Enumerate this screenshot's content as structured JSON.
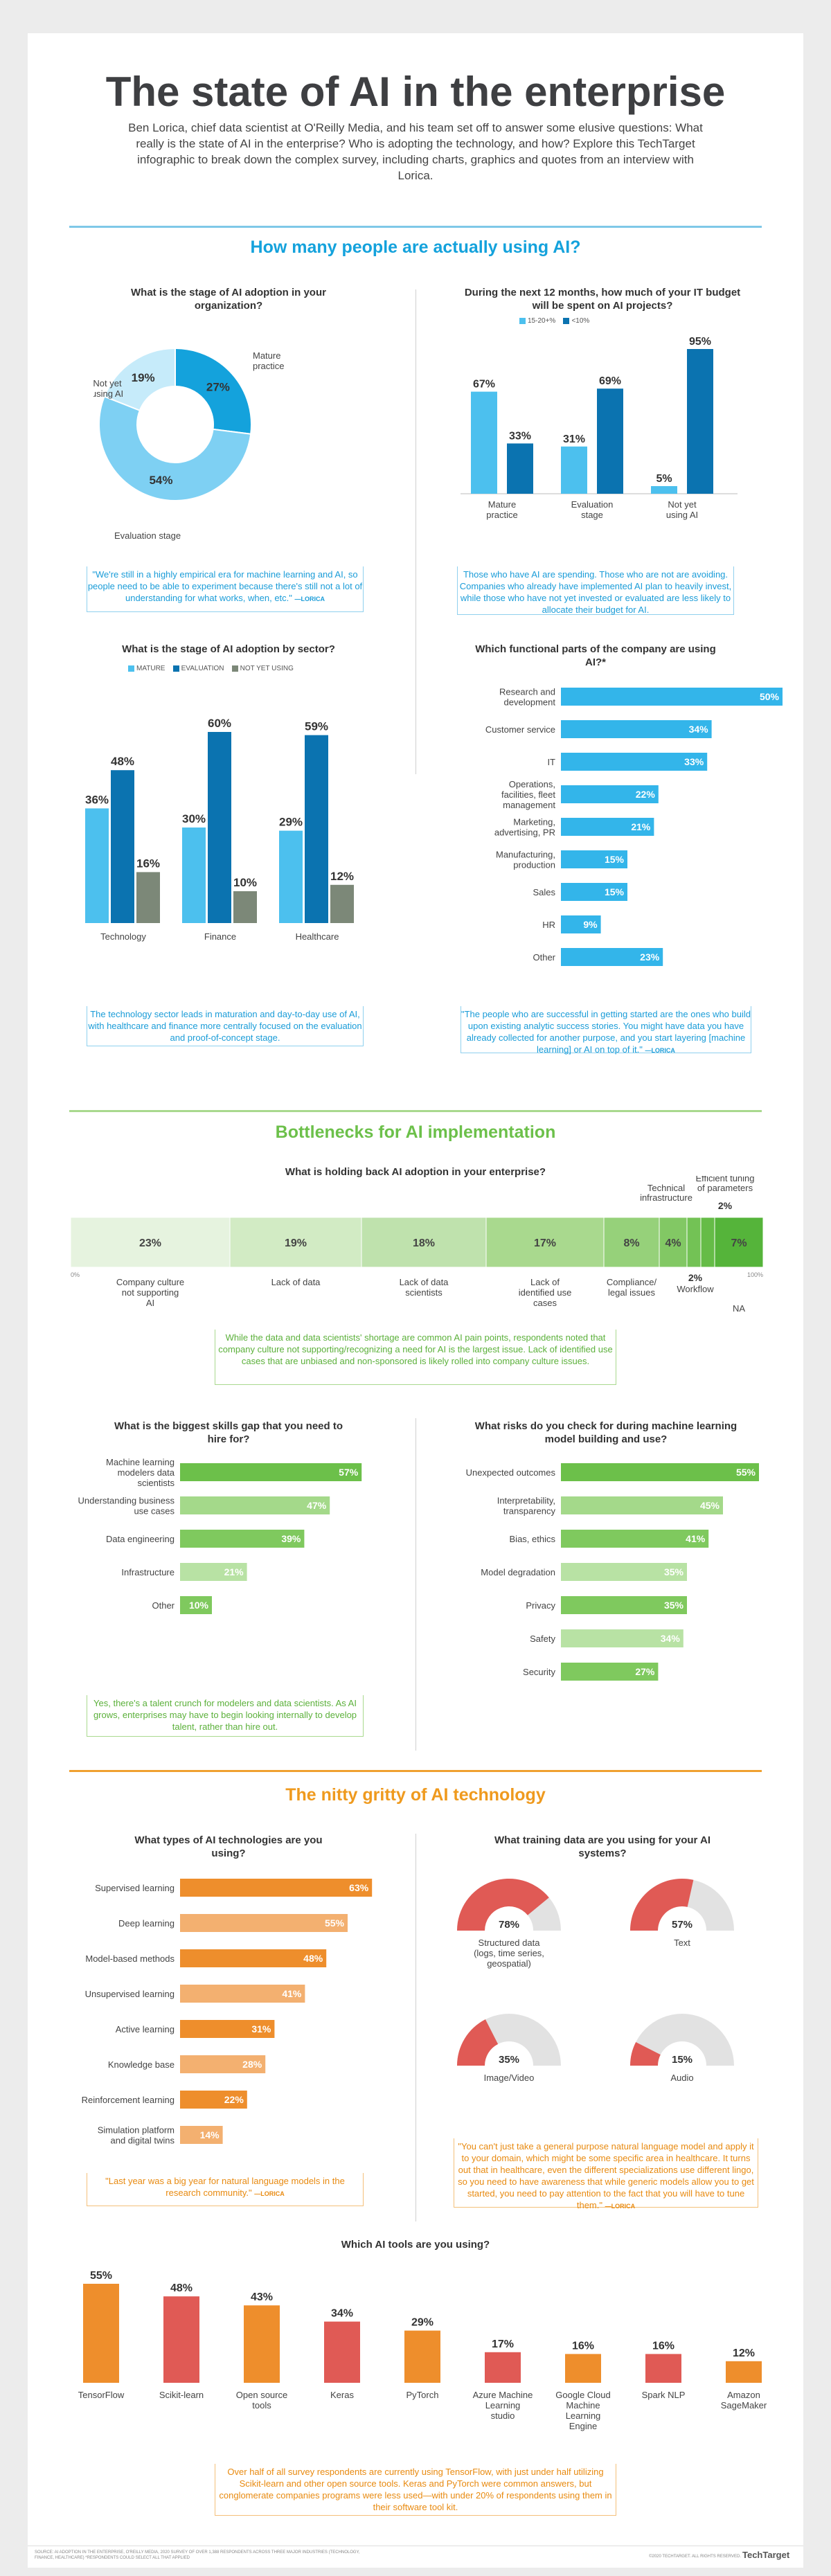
{
  "title": "The state of AI in the enterprise",
  "intro": "Ben Lorica, chief data scientist at O'Reilly Media, and his team set off to answer some elusive questions: What really is the state of AI in the enterprise? Who is adopting the technology, and how? Explore this TechTarget infographic to break down the complex survey, including charts, graphics and quotes from an interview with Lorica.",
  "colors": {
    "blue_rule": "#7ec8e8",
    "green": "#6cc04a",
    "orange": "#f0a030",
    "blue_light": "#4cc0ee",
    "blue_dark": "#0b73b0",
    "grey": "#7c8878"
  },
  "sections": {
    "usage": "How many people are actually using AI?",
    "bottlenecks": "Bottlenecks for AI implementation",
    "gritty": "The nitty gritty of AI technology"
  },
  "questions": {
    "adoption_stage": "What is the stage of AI adoption in your organization?",
    "budget": "During the next 12 months, how much of your IT budget will be spent on AI projects?",
    "by_sector": "What is the stage of AI adoption by sector?",
    "functional": "Which functional parts of the company are using AI?*",
    "holding_back": "What is holding back AI adoption in your enterprise?",
    "skills": "What is the biggest skills gap that you need to hire for?",
    "risks": "What risks do you check for during machine learning model building and use?",
    "tech_types": "What types of AI technologies are you using?",
    "training_data": "What training data are you using for your AI systems?",
    "tools": "Which AI tools are you using?"
  },
  "quotes": {
    "q1": "\"We're still in a highly empirical era for machine learning and AI, so people need to be able to experiment because there's still not a lot of understanding for what works, when, etc.\"",
    "q1_src": "—LORICA",
    "q2": "Those who have AI are spending. Those who are not are avoiding. Companies who already have implemented AI plan to heavily invest, while those who have not yet invested or evaluated are less likely to allocate their budget for AI.",
    "q3": "The technology sector leads in maturation and day-to-day use of AI, with healthcare and finance more centrally focused on the evaluation and proof-of-concept stage.",
    "q4": "\"The people who are successful in getting started are the ones who build upon existing analytic success stories. You might have data you have already collected for another purpose, and you start layering [machine learning] or AI on top of it.\"",
    "q4_src": "—LORICA",
    "q5": "While the data and data scientists' shortage are common AI pain points, respondents noted that company culture not supporting/recognizing a need for AI is the largest issue. Lack of identified use cases that are unbiased and non-sponsored is likely rolled into company culture issues.",
    "q6": "Yes, there's a talent crunch for modelers and data scientists. As AI grows, enterprises may have to begin looking internally to develop talent, rather than hire out.",
    "q7": "\"Last year was a big year for natural language models in the research community.\"",
    "q7_src": "—LORICA",
    "q8": "\"You can't just take a general purpose natural language model and apply it to your domain, which might be some specific area in healthcare. It turns out that in healthcare, even the different specializations use different lingo, so you need to have awareness that while generic models allow you to get started, you need to pay attention to the fact that you will have to tune them.\"",
    "q8_src": "—LORICA",
    "q9": "Over half of all survey respondents are currently using TensorFlow, with just under half utilizing Scikit-learn and other open source tools. Keras and PyTorch were common answers, but conglomerate companies programs were less used—with under 20% of respondents using them in their software tool kit."
  },
  "chart_data": [
    {
      "type": "pie",
      "id": "adoption_stage",
      "slices": [
        {
          "name": "Mature practice",
          "value": 27,
          "label": "27%"
        },
        {
          "name": "Evaluation stage",
          "value": 54,
          "label": "54%"
        },
        {
          "name": "Not yet using AI",
          "value": 19,
          "label": "19%"
        }
      ]
    },
    {
      "type": "bar",
      "id": "budget",
      "legend": [
        "15-20+%",
        "<10%"
      ],
      "categories": [
        "Mature practice",
        "Evaluation stage",
        "Not yet using AI"
      ],
      "series": [
        {
          "name": "15-20+%",
          "values": [
            67,
            31,
            5
          ],
          "labels": [
            "67%",
            "31%",
            "5%"
          ]
        },
        {
          "name": "<10%",
          "values": [
            33,
            69,
            95
          ],
          "labels": [
            "33%",
            "69%",
            "95%"
          ]
        }
      ]
    },
    {
      "type": "bar",
      "id": "by_sector",
      "legend": [
        "MATURE",
        "EVALUATION",
        "NOT YET USING"
      ],
      "categories": [
        "Technology",
        "Finance",
        "Healthcare"
      ],
      "series": [
        {
          "name": "MATURE",
          "values": [
            36,
            30,
            29
          ],
          "labels": [
            "36%",
            "30%",
            "29%"
          ]
        },
        {
          "name": "EVALUATION",
          "values": [
            48,
            60,
            59
          ],
          "labels": [
            "48%",
            "60%",
            "59%"
          ]
        },
        {
          "name": "NOT YET USING",
          "values": [
            16,
            10,
            12
          ],
          "labels": [
            "16%",
            "10%",
            "12%"
          ]
        }
      ]
    },
    {
      "type": "bar",
      "id": "functional",
      "orientation": "horizontal",
      "categories": [
        "Research and development",
        "Customer service",
        "IT",
        "Operations, facilities, fleet management",
        "Marketing, advertising, PR",
        "Manufacturing, production",
        "Sales",
        "HR",
        "Other"
      ],
      "values": [
        50,
        34,
        33,
        22,
        21,
        15,
        15,
        9,
        23
      ],
      "labels": [
        "50%",
        "34%",
        "33%",
        "22%",
        "21%",
        "15%",
        "15%",
        "9%",
        "23%"
      ]
    },
    {
      "type": "bar",
      "id": "holding_back",
      "orientation": "stacked-horizontal",
      "axis_start": "0%",
      "axis_end": "100%",
      "categories": [
        "Company culture not supporting AI",
        "Lack of data",
        "Lack of data scientists",
        "Lack of identified use cases",
        "Compliance/ legal issues",
        "Technical infrastructure",
        "Workflow",
        "Efficient tuning of parameters",
        "NA"
      ],
      "values": [
        23,
        19,
        18,
        17,
        8,
        4,
        2,
        2,
        7
      ],
      "labels": [
        "23%",
        "19%",
        "18%",
        "17%",
        "8%",
        "4%",
        "2%",
        "2%",
        "7%"
      ]
    },
    {
      "type": "bar",
      "id": "skills",
      "orientation": "horizontal",
      "categories": [
        "Machine learning modelers data scientists",
        "Understanding business use cases",
        "Data engineering",
        "Infrastructure",
        "Other"
      ],
      "values": [
        57,
        47,
        39,
        21,
        10
      ],
      "labels": [
        "57%",
        "47%",
        "39%",
        "21%",
        "10%"
      ]
    },
    {
      "type": "bar",
      "id": "risks",
      "orientation": "horizontal",
      "categories": [
        "Unexpected outcomes",
        "Interpretability, transparency",
        "Bias, ethics",
        "Model degradation",
        "Privacy",
        "Safety",
        "Security"
      ],
      "values": [
        55,
        45,
        41,
        35,
        35,
        34,
        27
      ],
      "labels": [
        "55%",
        "45%",
        "41%",
        "35%",
        "35%",
        "34%",
        "27%"
      ]
    },
    {
      "type": "bar",
      "id": "tech_types",
      "orientation": "horizontal",
      "categories": [
        "Supervised learning",
        "Deep learning",
        "Model-based methods",
        "Unsupervised learning",
        "Active learning",
        "Knowledge base",
        "Reinforcement learning",
        "Simulation platform and digital twins"
      ],
      "values": [
        63,
        55,
        48,
        41,
        31,
        28,
        22,
        14
      ],
      "labels": [
        "63%",
        "55%",
        "48%",
        "41%",
        "31%",
        "28%",
        "22%",
        "14%"
      ]
    },
    {
      "type": "pie",
      "id": "training_data",
      "style": "gauge",
      "items": [
        {
          "name": "Structured data (logs, time series, geospatial)",
          "value": 78,
          "label": "78%"
        },
        {
          "name": "Text",
          "value": 57,
          "label": "57%"
        },
        {
          "name": "Image/Video",
          "value": 35,
          "label": "35%"
        },
        {
          "name": "Audio",
          "value": 15,
          "label": "15%"
        }
      ]
    },
    {
      "type": "bar",
      "id": "tools",
      "categories": [
        "TensorFlow",
        "Scikit-learn",
        "Open source tools",
        "Keras",
        "PyTorch",
        "Azure Machine Learning studio",
        "Google Cloud Machine Learning Engine",
        "Spark NLP",
        "Amazon SageMaker"
      ],
      "values": [
        55,
        48,
        43,
        34,
        29,
        17,
        16,
        16,
        12
      ],
      "labels": [
        "55%",
        "48%",
        "43%",
        "34%",
        "29%",
        "17%",
        "16%",
        "16%",
        "12%"
      ]
    }
  ],
  "footer": {
    "sources": "SOURCE: AI ADOPTION IN THE ENTERPRISE, O'REILLY MEDIA, 2020 SURVEY OF OVER 1,388 RESPONDENTS ACROSS THREE MAJOR INDUSTRIES (TECHNOLOGY, FINANCE, HEALTHCARE) *RESPONDENTS COULD SELECT ALL THAT APPLIED",
    "copyright": "©2020 TECHTARGET. ALL RIGHTS RESERVED.",
    "brand": "TechTarget"
  }
}
